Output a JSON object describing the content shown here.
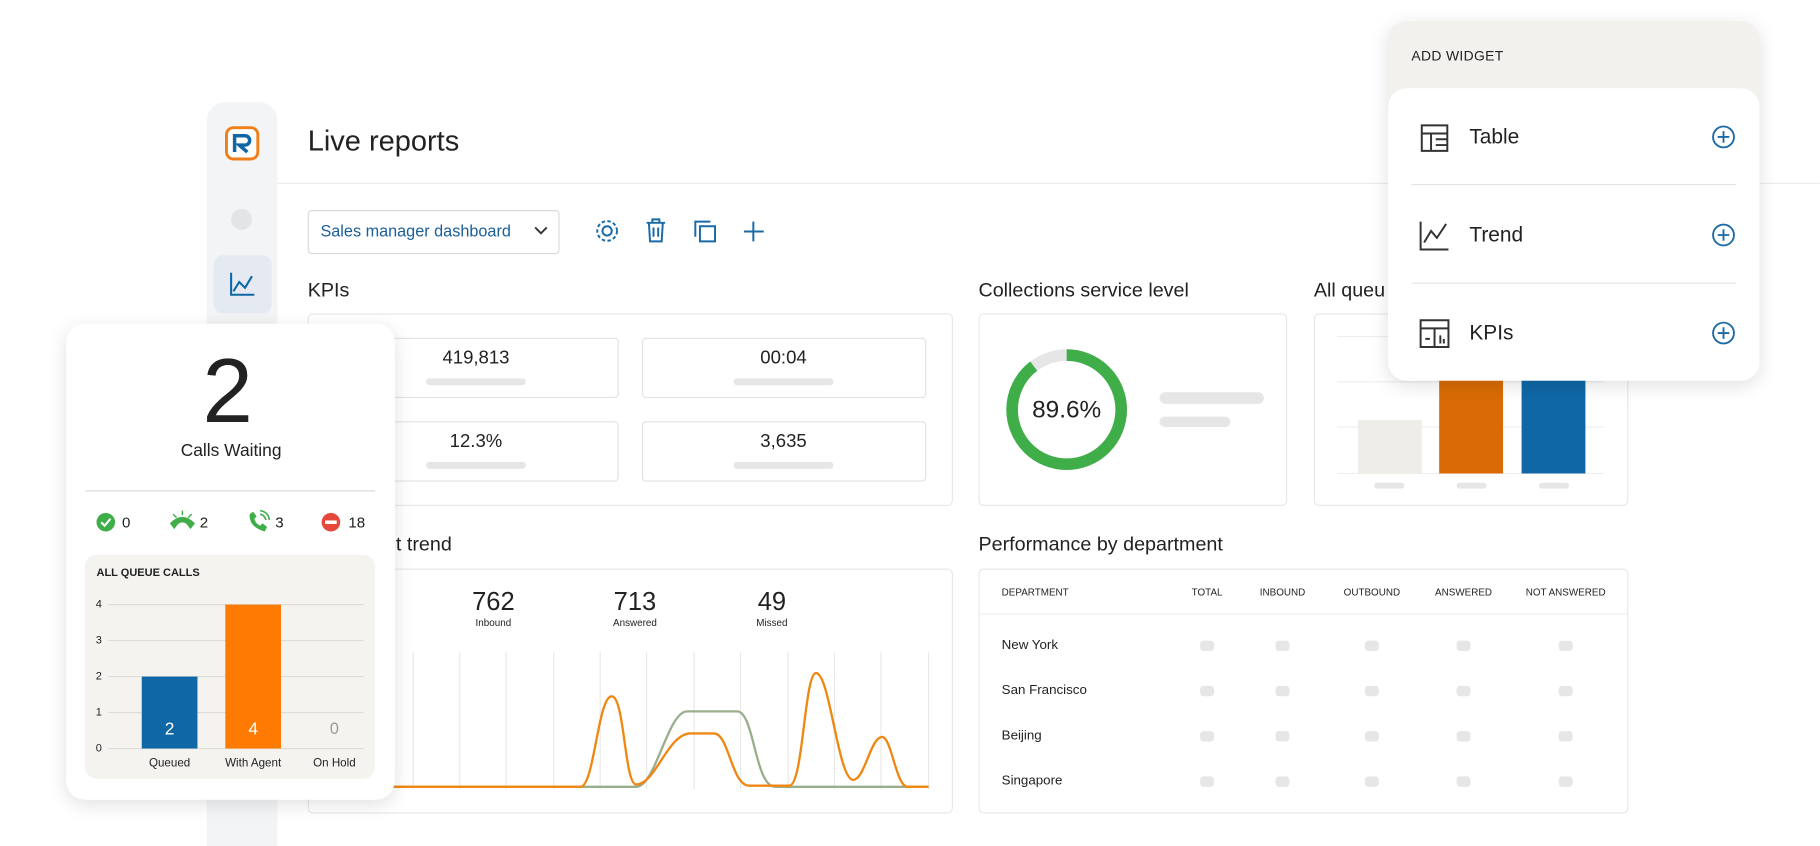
{
  "header": {
    "title": "Live reports"
  },
  "toolbar": {
    "dashboard_select": "Sales manager dashboard"
  },
  "kpis": {
    "title": "KPIs",
    "values": [
      "419,813",
      "00:04",
      "12.3%",
      "3,635"
    ]
  },
  "collections": {
    "title": "Collections service level",
    "service_level": {
      "value": 89.6,
      "label": "89.6%"
    }
  },
  "all_queue": {
    "title": "All queu"
  },
  "trend": {
    "title": "t trend",
    "stats": [
      {
        "value": "762",
        "label": "Inbound"
      },
      {
        "value": "713",
        "label": "Answered"
      },
      {
        "value": "49",
        "label": "Missed"
      }
    ]
  },
  "performance": {
    "title": "Performance by department",
    "columns": [
      "DEPARTMENT",
      "TOTAL",
      "INBOUND",
      "OUTBOUND",
      "ANSWERED",
      "NOT ANSWERED"
    ],
    "rows": [
      "New York",
      "San Francisco",
      "Beijing",
      "Singapore"
    ]
  },
  "add_widget": {
    "title": "ADD WIDGET",
    "items": [
      "Table",
      "Trend",
      "KPIs"
    ]
  },
  "calls_waiting": {
    "count": "2",
    "label": "Calls Waiting",
    "statuses": [
      "0",
      "2",
      "3",
      "18"
    ]
  },
  "chart_data": {
    "type": "bar",
    "title": "ALL QUEUE CALLS",
    "categories": [
      "Queued",
      "With Agent",
      "On Hold"
    ],
    "values": [
      2,
      4,
      0
    ],
    "colors": [
      "#0f67a6",
      "#ff7a00",
      "#9a9a9a"
    ],
    "ylim": [
      0,
      4
    ],
    "yticks": [
      0,
      1,
      2,
      3,
      4
    ],
    "grid": true
  }
}
